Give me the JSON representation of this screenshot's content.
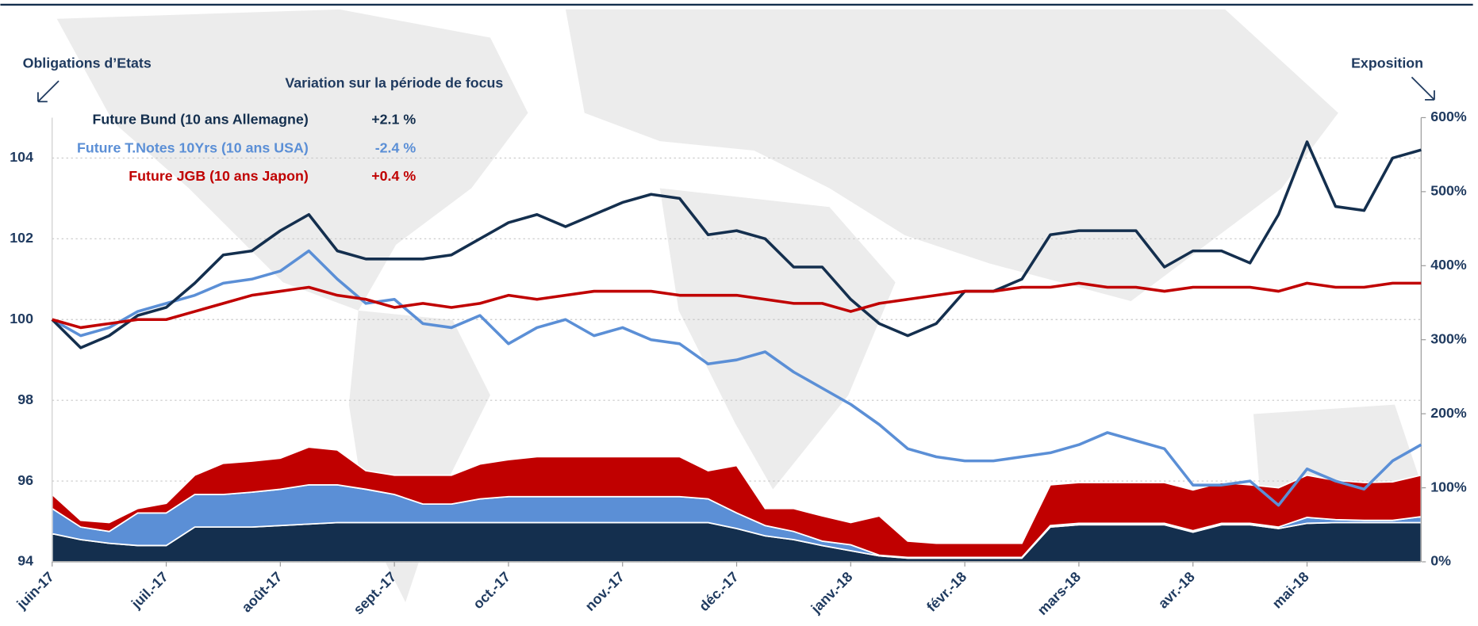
{
  "chart_data": {
    "type": "line",
    "legend_title": "Variation sur la période de focus",
    "ylabel": "Obligations d’Etats",
    "y2label": "Exposition",
    "categories": [
      "juin-17",
      null,
      null,
      null,
      "juil.-17",
      null,
      null,
      null,
      "août-17",
      null,
      null,
      null,
      "sept.-17",
      null,
      null,
      null,
      "oct.-17",
      null,
      null,
      null,
      "nov.-17",
      null,
      null,
      null,
      "déc.-17",
      null,
      null,
      null,
      "janv.-18",
      null,
      null,
      null,
      "févr.-18",
      null,
      null,
      null,
      "mars-18",
      null,
      null,
      null,
      "avr.-18",
      null,
      null,
      null,
      "mai-18",
      null,
      null,
      null,
      null
    ],
    "ylim": [
      94,
      105
    ],
    "yticks": [
      94,
      96,
      98,
      100,
      102,
      104
    ],
    "y2lim": [
      0,
      600
    ],
    "y2ticks": [
      {
        "value": 0,
        "label": "0%"
      },
      {
        "value": 100,
        "label": "100%"
      },
      {
        "value": 200,
        "label": "200%"
      },
      {
        "value": 300,
        "label": "300%"
      },
      {
        "value": 400,
        "label": "400%"
      },
      {
        "value": 500,
        "label": "500%"
      },
      {
        "value": 600,
        "label": "600%"
      }
    ],
    "grid": true,
    "series": [
      {
        "name": "Future Bund (10 ans Allemagne)",
        "change": "+2.1 %",
        "color": "#142f4e",
        "values": [
          100.0,
          99.3,
          99.6,
          100.1,
          100.3,
          100.9,
          101.6,
          101.7,
          102.2,
          102.6,
          101.7,
          101.5,
          101.5,
          101.5,
          101.6,
          102.0,
          102.4,
          102.6,
          102.3,
          102.6,
          102.9,
          103.1,
          103.0,
          102.1,
          102.2,
          102.0,
          101.3,
          101.3,
          100.5,
          99.9,
          99.6,
          99.9,
          100.7,
          100.7,
          101.0,
          102.1,
          102.2,
          102.2,
          102.2,
          101.3,
          101.7,
          101.7,
          101.4,
          102.6,
          104.4,
          102.8,
          102.7,
          104.0,
          104.2
        ]
      },
      {
        "name": "Future T.Notes 10Yrs (10 ans USA)",
        "change": "-2.4 %",
        "color": "#5b8fd6",
        "values": [
          100.0,
          99.6,
          99.8,
          100.2,
          100.4,
          100.6,
          100.9,
          101.0,
          101.2,
          101.7,
          101.0,
          100.4,
          100.5,
          99.9,
          99.8,
          100.1,
          99.4,
          99.8,
          100.0,
          99.6,
          99.8,
          99.5,
          99.4,
          98.9,
          99.0,
          99.2,
          98.7,
          98.3,
          97.9,
          97.4,
          96.8,
          96.6,
          96.5,
          96.5,
          96.6,
          96.7,
          96.9,
          97.2,
          97.0,
          96.8,
          95.9,
          95.9,
          96.0,
          95.4,
          96.3,
          96.0,
          95.8,
          96.5,
          96.9
        ]
      },
      {
        "name": "Future JGB (10 ans Japon)",
        "change": "+0.4 %",
        "color": "#c00000",
        "values": [
          100.0,
          99.8,
          99.9,
          100.0,
          100.0,
          100.2,
          100.4,
          100.6,
          100.7,
          100.8,
          100.6,
          100.5,
          100.3,
          100.4,
          100.3,
          100.4,
          100.6,
          100.5,
          100.6,
          100.7,
          100.7,
          100.7,
          100.6,
          100.6,
          100.6,
          100.5,
          100.4,
          100.4,
          100.2,
          100.4,
          100.5,
          100.6,
          100.7,
          100.7,
          100.8,
          100.8,
          100.9,
          100.8,
          100.8,
          100.7,
          100.8,
          100.8,
          100.8,
          100.7,
          100.9,
          100.8,
          100.8,
          100.9,
          100.9
        ]
      },
      {
        "type": "area",
        "axis": "y2",
        "stacked": true,
        "color": "#142f4e",
        "values": [
          38,
          30,
          25,
          22,
          22,
          47,
          47,
          47,
          49,
          51,
          53,
          53,
          53,
          53,
          53,
          53,
          53,
          53,
          53,
          53,
          53,
          53,
          53,
          53,
          45,
          35,
          30,
          22,
          15,
          8,
          5,
          5,
          5,
          5,
          5,
          47,
          50,
          50,
          50,
          50,
          40,
          50,
          50,
          45,
          52,
          53,
          53,
          53,
          53
        ]
      },
      {
        "type": "area",
        "axis": "y2",
        "stacked": true,
        "color": "#5b8fd6",
        "values": [
          34,
          17,
          16,
          44,
          44,
          44,
          44,
          47,
          49,
          53,
          51,
          45,
          38,
          25,
          25,
          32,
          35,
          35,
          35,
          35,
          35,
          35,
          35,
          32,
          21,
          14,
          11,
          6,
          8,
          1,
          1,
          1,
          1,
          1,
          1,
          2,
          2,
          2,
          2,
          2,
          2,
          2,
          2,
          2,
          8,
          4,
          3,
          3,
          8
        ]
      },
      {
        "type": "area",
        "axis": "y2",
        "stacked": true,
        "color": "#c00000",
        "values": [
          19,
          9,
          12,
          6,
          13,
          26,
          42,
          42,
          42,
          51,
          47,
          25,
          26,
          39,
          39,
          47,
          50,
          54,
          54,
          54,
          54,
          54,
          54,
          38,
          64,
          23,
          31,
          34,
          30,
          53,
          22,
          19,
          19,
          19,
          19,
          55,
          55,
          55,
          55,
          55,
          55,
          55,
          52,
          53,
          57,
          53,
          51,
          52,
          56
        ]
      }
    ]
  }
}
